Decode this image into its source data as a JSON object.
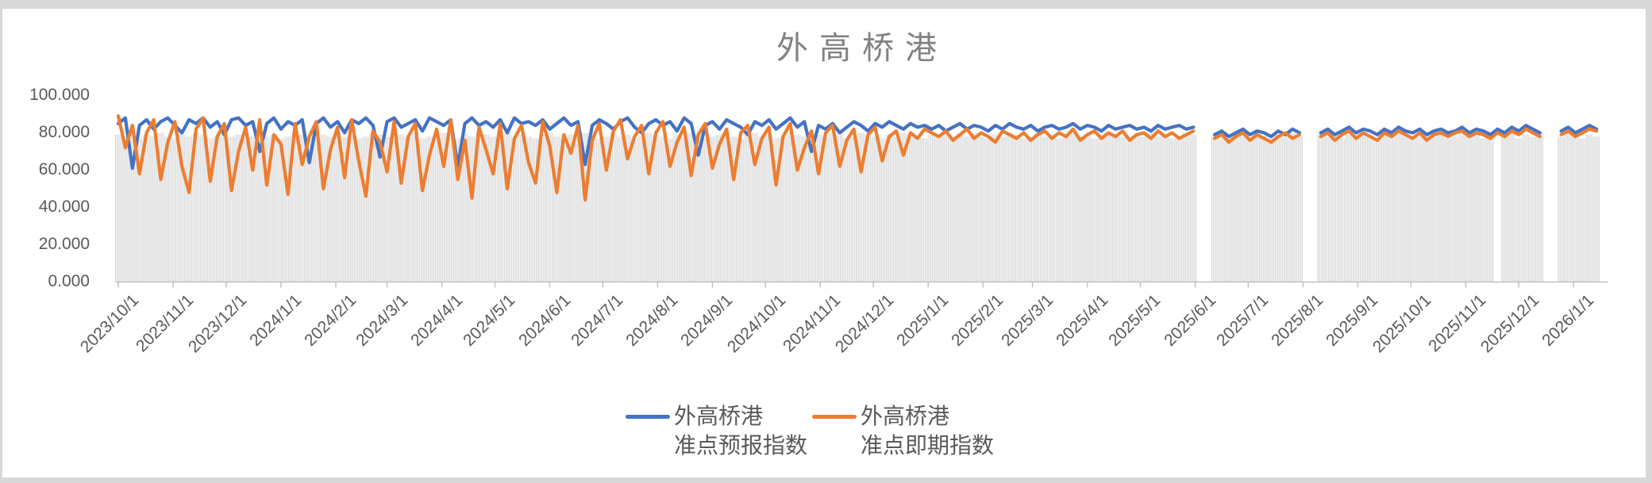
{
  "chart": {
    "title": "外高桥港",
    "y_axis": {
      "labels": [
        "100.000",
        "80.000",
        "60.000",
        "40.000",
        "20.000",
        "0.000"
      ]
    },
    "legend": {
      "items": [
        {
          "line1": "外高桥港",
          "line2": "准点预报指数",
          "color": "#4472C4"
        },
        {
          "line1": "外高桥港",
          "line2": "准点即期指数",
          "color": "#ED7D31"
        }
      ]
    },
    "colors": {
      "forecast_line": "#4472C4",
      "spot_line": "#ED7D31",
      "background_bars": "#DBDBDB",
      "axis": "#BFBFBF",
      "title_text": "#828282",
      "label_text": "#595959"
    }
  },
  "chart_data": {
    "type": "line",
    "title": "外高桥港",
    "ylim": [
      0,
      100
    ],
    "y_tick_labels": [
      "100.000",
      "80.000",
      "60.000",
      "40.000",
      "20.000",
      "0.000"
    ],
    "x_start_date": "2023/10/1",
    "sample_interval_days": 4,
    "x_tick_labels": [
      "2023/10/1",
      "2023/11/1",
      "2023/12/1",
      "2024/1/1",
      "2024/2/1",
      "2024/3/1",
      "2024/4/1",
      "2024/5/1",
      "2024/6/1",
      "2024/7/1",
      "2024/8/1",
      "2024/9/1",
      "2024/10/1",
      "2024/11/1",
      "2024/12/1",
      "2025/1/1",
      "2025/2/1",
      "2025/3/1",
      "2025/4/1",
      "2025/5/1",
      "2025/6/1",
      "2025/7/1",
      "2025/8/1",
      "2025/9/1",
      "2025/10/1",
      "2025/11/1",
      "2025/12/1",
      "2026/1/1"
    ],
    "x_tick_day_offsets": [
      0,
      31,
      61,
      92,
      123,
      152,
      183,
      213,
      244,
      274,
      305,
      336,
      366,
      397,
      427,
      458,
      489,
      517,
      548,
      578,
      609,
      639,
      670,
      701,
      731,
      762,
      792,
      823
    ],
    "legend_position": "bottom",
    "grid": false,
    "series": [
      {
        "name": "外高桥港准点预报指数",
        "type": "line",
        "color": "#4472C4",
        "values": [
          85,
          88,
          61,
          84,
          87,
          82,
          86,
          88,
          84,
          80,
          87,
          85,
          88,
          83,
          86,
          79,
          87,
          88,
          84,
          86,
          70,
          85,
          88,
          82,
          86,
          84,
          87,
          64,
          85,
          88,
          83,
          86,
          80,
          87,
          85,
          88,
          84,
          67,
          86,
          88,
          83,
          85,
          87,
          81,
          88,
          86,
          84,
          87,
          62,
          85,
          88,
          84,
          86,
          83,
          87,
          80,
          88,
          85,
          86,
          84,
          87,
          82,
          85,
          88,
          84,
          86,
          63,
          84,
          87,
          85,
          82,
          86,
          88,
          83,
          80,
          85,
          87,
          84,
          86,
          81,
          88,
          85,
          68,
          84,
          86,
          82,
          87,
          85,
          83,
          79,
          86,
          84,
          87,
          82,
          85,
          88,
          83,
          86,
          70,
          84,
          82,
          85,
          80,
          83,
          86,
          84,
          81,
          85,
          83,
          86,
          84,
          82,
          85,
          83,
          84,
          82,
          84,
          81,
          83,
          85,
          82,
          84,
          83,
          81,
          84,
          82,
          85,
          83,
          82,
          84,
          81,
          83,
          84,
          82,
          83,
          85,
          82,
          84,
          83,
          81,
          84,
          82,
          83,
          84,
          82,
          83,
          81,
          84,
          82,
          83,
          84,
          82,
          83,
          null,
          null,
          79,
          81,
          78,
          80,
          82,
          79,
          81,
          80,
          78,
          81,
          79,
          82,
          80,
          null,
          null,
          80,
          82,
          79,
          81,
          83,
          80,
          82,
          81,
          79,
          82,
          80,
          83,
          81,
          80,
          82,
          79,
          81,
          82,
          80,
          81,
          83,
          80,
          82,
          81,
          79,
          82,
          80,
          83,
          81,
          84,
          82,
          80,
          null,
          null,
          81,
          83,
          80,
          82,
          84,
          82
        ]
      },
      {
        "name": "外高桥港准点即期指数",
        "type": "line",
        "color": "#ED7D31",
        "values": [
          89,
          72,
          84,
          58,
          80,
          87,
          55,
          75,
          86,
          62,
          48,
          82,
          88,
          54,
          78,
          85,
          49,
          70,
          83,
          60,
          87,
          52,
          79,
          74,
          47,
          85,
          63,
          78,
          86,
          50,
          71,
          83,
          56,
          87,
          65,
          46,
          81,
          75,
          59,
          86,
          53,
          78,
          85,
          49,
          68,
          82,
          62,
          87,
          55,
          76,
          45,
          83,
          71,
          58,
          85,
          50,
          77,
          84,
          64,
          53,
          86,
          73,
          48,
          79,
          69,
          84,
          44,
          76,
          85,
          60,
          81,
          87,
          66,
          78,
          84,
          58,
          80,
          86,
          62,
          75,
          83,
          57,
          79,
          85,
          61,
          74,
          82,
          55,
          80,
          84,
          63,
          77,
          83,
          52,
          78,
          85,
          60,
          72,
          81,
          58,
          80,
          84,
          62,
          76,
          82,
          59,
          79,
          83,
          65,
          78,
          81,
          68,
          80,
          77,
          82,
          80,
          78,
          81,
          76,
          79,
          82,
          77,
          80,
          78,
          75,
          81,
          79,
          77,
          80,
          76,
          79,
          81,
          77,
          80,
          78,
          82,
          76,
          79,
          81,
          77,
          80,
          78,
          81,
          76,
          79,
          80,
          77,
          81,
          78,
          80,
          77,
          79,
          81,
          null,
          null,
          77,
          79,
          75,
          78,
          80,
          76,
          79,
          77,
          75,
          78,
          80,
          77,
          79,
          null,
          null,
          78,
          80,
          76,
          79,
          81,
          77,
          80,
          78,
          76,
          80,
          78,
          81,
          79,
          77,
          80,
          76,
          79,
          80,
          78,
          80,
          81,
          78,
          80,
          79,
          77,
          80,
          78,
          81,
          79,
          82,
          80,
          78,
          null,
          null,
          79,
          81,
          78,
          80,
          82,
          81
        ]
      },
      {
        "name": "background-bars",
        "type": "bar",
        "color": "#DBDBDB",
        "values": [
          79,
          78,
          80,
          77,
          79,
          78,
          80,
          78,
          77,
          79,
          78,
          80,
          79,
          77,
          78,
          80,
          78,
          79,
          77,
          78,
          80,
          78,
          79,
          77,
          78,
          80,
          79,
          78,
          77,
          79,
          78,
          80,
          78,
          79,
          77,
          78,
          80,
          79,
          78,
          77,
          79,
          78,
          80,
          77,
          78,
          79,
          80,
          78,
          77,
          79,
          78,
          80,
          79,
          78,
          77,
          80,
          78,
          79,
          78,
          77,
          79,
          80,
          78,
          77,
          79,
          78,
          80,
          79,
          77,
          78,
          80,
          78,
          79,
          77,
          78,
          80,
          79,
          78,
          77,
          79,
          78,
          80,
          79,
          77,
          78,
          79,
          80,
          78,
          77,
          79,
          80,
          78,
          79,
          77,
          78,
          80,
          79,
          78,
          77,
          79,
          78,
          80,
          79,
          77,
          78,
          80,
          79,
          78,
          77,
          79,
          78,
          80,
          79,
          78,
          77,
          79,
          78,
          80,
          77,
          79,
          78,
          80,
          78,
          77,
          79,
          78,
          80,
          79,
          77,
          78,
          80,
          78,
          79,
          77,
          78,
          80,
          78,
          79,
          77,
          78,
          80,
          79,
          78,
          77,
          79,
          78,
          80,
          78,
          79,
          77,
          78,
          80,
          79,
          null,
          null,
          78,
          77,
          79,
          78,
          80,
          77,
          79,
          78,
          77,
          79,
          78,
          80,
          78,
          null,
          null,
          79,
          78,
          80,
          77,
          79,
          78,
          80,
          78,
          77,
          79,
          78,
          80,
          79,
          77,
          78,
          80,
          78,
          79,
          77,
          78,
          80,
          78,
          79,
          77,
          78,
          null,
          78,
          80,
          77,
          79,
          78,
          80,
          null,
          null,
          78,
          80,
          79,
          77,
          79,
          78
        ]
      }
    ]
  }
}
